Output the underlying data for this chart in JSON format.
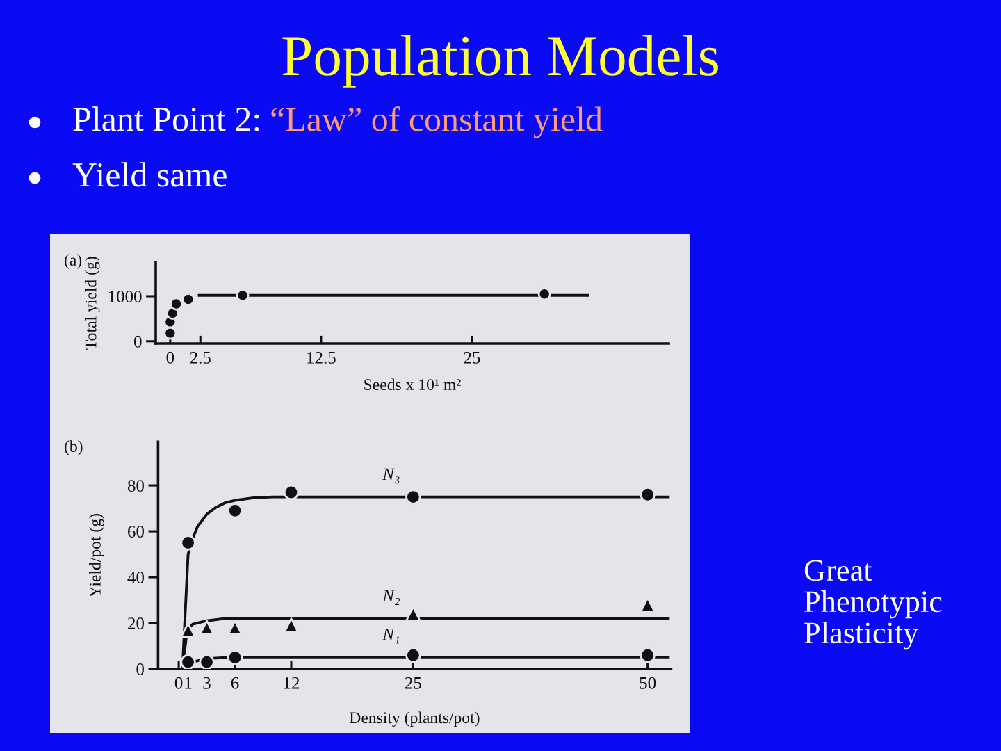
{
  "chart_data": [
    {
      "type": "scatter",
      "title": "Population Models",
      "xlabel": "Seeds x 10¹ m²",
      "ylabel": "Total yield (g)",
      "annotations": [
        "Plant Point 2:",
        "“Law” of constant yield",
        "Yield same",
        "(a)"
      ],
      "xlim": [
        -1.2,
        41.3
      ],
      "ylim": [
        -50,
        1750
      ],
      "xticks": [
        0,
        2.5,
        12.5,
        25
      ],
      "yticks": [
        0,
        1000
      ],
      "series": [
        {
          "type": "line",
          "x": [
            2.4,
            34.6
          ],
          "values": [
            1020,
            1020
          ],
          "color": "#111111",
          "line_style": "solid"
        },
        {
          "x": [
            0,
            0,
            0.2,
            0.5,
            1.5,
            6,
            31
          ],
          "values": [
            180,
            430,
            620,
            830,
            930,
            1020,
            1050
          ],
          "color": "#111111",
          "marker": "circle"
        }
      ]
    },
    {
      "type": "scatter",
      "xlabel": "Density (plants/pot)",
      "ylabel": "Yield/pot (g)",
      "annotations": [
        "(b)",
        "Great Phenotypic Plasticity"
      ],
      "xlim": [
        -2.2,
        52.5
      ],
      "ylim": [
        0,
        99
      ],
      "xticks": [
        0,
        1,
        3,
        6,
        12,
        25,
        50
      ],
      "yticks": [
        0,
        20,
        40,
        60,
        80
      ],
      "series": [
        {
          "type": "line",
          "name": "N₃",
          "x": [
            0.4,
            1,
            1.5,
            2,
            3,
            4,
            5,
            6,
            8,
            10,
            52.2
          ],
          "values": [
            0,
            50,
            57,
            62,
            67.5,
            70.5,
            72.5,
            73.5,
            74.6,
            75,
            75
          ],
          "color": "#111111",
          "line_style": "solid"
        },
        {
          "type": "line",
          "name": "N₂",
          "x": [
            0.4,
            0.9,
            1.5,
            3,
            5,
            52.2
          ],
          "values": [
            0,
            17,
            19.5,
            21,
            22,
            22
          ],
          "color": "#111111",
          "line_style": "solid"
        },
        {
          "type": "line",
          "name": "N₁",
          "x": [
            0.4,
            1,
            2,
            3,
            6,
            52.2
          ],
          "values": [
            0,
            3,
            3.5,
            4.5,
            5.2,
            5.2
          ],
          "color": "#111111",
          "line_style": "solid"
        },
        {
          "x": [
            1,
            6,
            12,
            25,
            50
          ],
          "values": [
            55,
            69,
            77,
            75,
            76
          ],
          "color": "#111111",
          "marker": "circle"
        },
        {
          "x": [
            1,
            3,
            6,
            12,
            25,
            50
          ],
          "values": [
            17,
            18,
            18,
            19,
            24,
            28
          ],
          "color": "#111111",
          "marker": "triangle"
        },
        {
          "x": [
            1,
            3,
            6,
            25,
            50
          ],
          "values": [
            3,
            3,
            5,
            6,
            6
          ],
          "color": "#111111",
          "marker": "circle"
        }
      ]
    }
  ]
}
